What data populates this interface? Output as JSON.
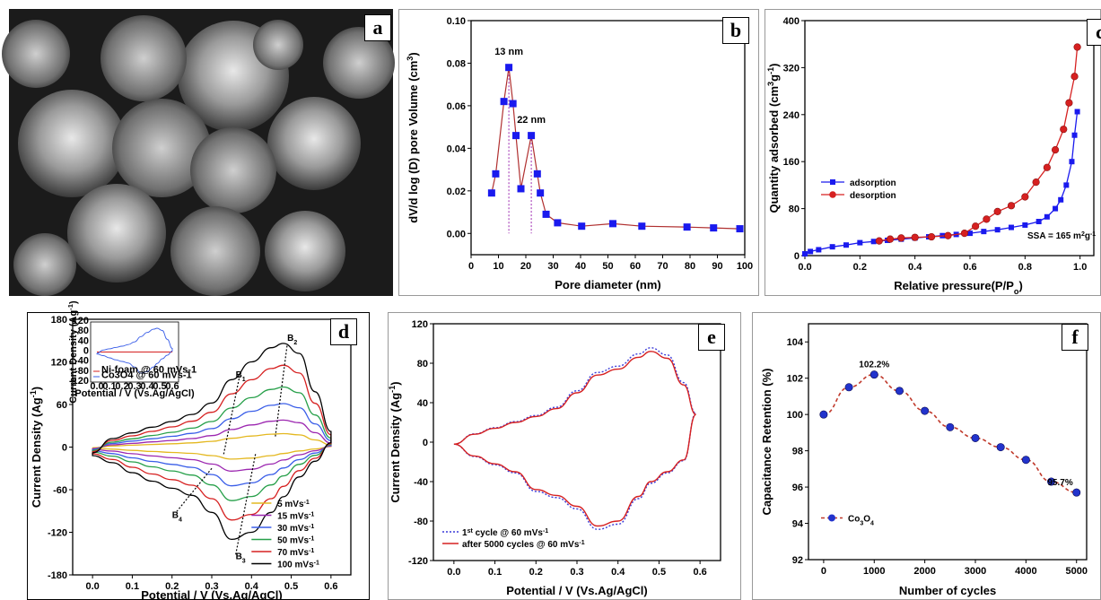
{
  "panel_labels": {
    "a": "a",
    "b": "b",
    "c": "c",
    "d": "d",
    "e": "e",
    "f": "f"
  },
  "chart_data": [
    {
      "id": "b",
      "type": "line",
      "xlabel": "Pore diameter (nm)",
      "ylabel": "dV/d log (D) pore Volume (cm3)",
      "xlim": [
        0,
        100
      ],
      "ylim": [
        -0.01,
        0.1
      ],
      "xticks": [
        0,
        10,
        20,
        30,
        40,
        50,
        60,
        70,
        80,
        90,
        100
      ],
      "yticks": [
        0.0,
        0.02,
        0.04,
        0.06,
        0.08,
        0.1
      ],
      "ytick_labels": [
        "0.00",
        "0.02",
        "0.04",
        "0.06",
        "0.08",
        "0.10"
      ],
      "x": [
        7.5,
        9,
        12,
        13.8,
        15.3,
        16.4,
        18.2,
        22,
        24.2,
        25.3,
        27.4,
        31.6,
        40.4,
        51.8,
        62.4,
        78.9,
        88.6,
        98.2
      ],
      "y": [
        0.019,
        0.028,
        0.062,
        0.078,
        0.061,
        0.046,
        0.021,
        0.046,
        0.028,
        0.019,
        0.009,
        0.005,
        0.0034,
        0.0046,
        0.0034,
        0.003,
        0.0026,
        0.0022
      ],
      "marker_color": "#1a1aee",
      "line_color": "#b03030",
      "annotations": [
        {
          "text": "13 nm",
          "x": 13.8
        },
        {
          "text": "22 nm",
          "x": 22
        }
      ]
    },
    {
      "id": "c",
      "type": "line",
      "xlabel": "Relative pressure(P/P",
      "xlabel_sub": "o",
      "xlabel_end": ")",
      "ylabel": "Quantity adsorbed (cm3g-1)",
      "xlim": [
        0,
        1.05
      ],
      "ylim": [
        0,
        400
      ],
      "xticks": [
        0.0,
        0.2,
        0.4,
        0.6,
        0.8,
        1.0
      ],
      "xtick_labels": [
        "0.0",
        "0.2",
        "0.4",
        "0.6",
        "0.8",
        "1.0"
      ],
      "yticks": [
        0,
        80,
        160,
        240,
        320,
        400
      ],
      "series": [
        {
          "name": "adsorption",
          "color": "#1a1aee",
          "marker": "square",
          "x": [
            0.0,
            0.02,
            0.05,
            0.1,
            0.15,
            0.2,
            0.25,
            0.3,
            0.35,
            0.4,
            0.45,
            0.5,
            0.55,
            0.6,
            0.65,
            0.7,
            0.75,
            0.8,
            0.85,
            0.88,
            0.91,
            0.93,
            0.95,
            0.97,
            0.98,
            0.99
          ],
          "y": [
            3,
            7,
            10,
            15,
            18,
            22,
            24,
            26,
            28,
            30,
            32,
            34,
            36,
            38,
            41,
            44,
            48,
            52,
            58,
            66,
            80,
            95,
            120,
            160,
            205,
            245
          ]
        },
        {
          "name": "desorption",
          "color": "#d62020",
          "marker": "circle",
          "x": [
            0.27,
            0.31,
            0.35,
            0.4,
            0.46,
            0.52,
            0.58,
            0.62,
            0.66,
            0.7,
            0.75,
            0.8,
            0.84,
            0.88,
            0.91,
            0.94,
            0.96,
            0.98,
            0.99
          ],
          "y": [
            25,
            28,
            30,
            31,
            32,
            34,
            38,
            50,
            62,
            75,
            85,
            100,
            125,
            150,
            180,
            215,
            260,
            305,
            355
          ]
        }
      ],
      "annotation": "SSA = 165 m2g-1",
      "annotation_color": "#2e9a2e"
    },
    {
      "id": "d",
      "type": "line",
      "xlabel": "Potential / V (Vs.Ag/AgCl)",
      "ylabel": "Current Density (Ag-1)",
      "xlim": [
        -0.05,
        0.65
      ],
      "ylim": [
        -180,
        180
      ],
      "xticks": [
        0.0,
        0.1,
        0.2,
        0.3,
        0.4,
        0.5,
        0.6
      ],
      "xtick_labels": [
        "0.0",
        "0.1",
        "0.2",
        "0.3",
        "0.4",
        "0.5",
        "0.6"
      ],
      "yticks": [
        -180,
        -120,
        -60,
        0,
        60,
        120,
        180
      ],
      "series": [
        {
          "name": "5 mVs-1",
          "color": "#e4b820",
          "scale": 0.13
        },
        {
          "name": "15 mVs-1",
          "color": "#9c27b0",
          "scale": 0.26
        },
        {
          "name": "30 mVs-1",
          "color": "#3a5ee8",
          "scale": 0.42
        },
        {
          "name": "50 mVs-1",
          "color": "#27a04a",
          "scale": 0.58
        },
        {
          "name": "70 mVs-1",
          "color": "#d62020",
          "scale": 0.79
        },
        {
          "name": "100 mVs-1",
          "color": "#000000",
          "scale": 1.0
        }
      ],
      "base_curve": {
        "x": [
          0.0,
          0.05,
          0.1,
          0.15,
          0.2,
          0.25,
          0.3,
          0.35,
          0.4,
          0.45,
          0.48,
          0.52,
          0.56,
          0.6
        ],
        "upper": [
          -8,
          12,
          20,
          28,
          36,
          46,
          62,
          95,
          120,
          140,
          146,
          132,
          78,
          22
        ],
        "lower": [
          -12,
          -22,
          -36,
          -48,
          -58,
          -68,
          -92,
          -130,
          -120,
          -92,
          -70,
          -42,
          -20,
          6
        ]
      },
      "peak_labels": [
        {
          "text": "B1",
          "x": 0.36,
          "y": 98
        },
        {
          "text": "B2",
          "x": 0.49,
          "y": 150
        },
        {
          "text": "B3",
          "x": 0.36,
          "y": -158
        },
        {
          "text": "B4",
          "x": 0.2,
          "y": -100
        }
      ],
      "inset": {
        "xlabel": "Potential / V (Vs.Ag/AgCl)",
        "ylabel": "Current Density (Ag-1)",
        "xticks": [
          0.0,
          0.1,
          0.2,
          0.3,
          0.4,
          0.5,
          0.6
        ],
        "xtick_labels": [
          "0.0",
          "0.1",
          "0.2",
          "0.3",
          "0.4",
          "0.5",
          "0.6"
        ],
        "yticks": [
          -120,
          -80,
          -40,
          0,
          40,
          80,
          120
        ],
        "series": [
          {
            "name": "Ni-foam @ 60 mVs-1",
            "color": "#d62020"
          },
          {
            "name": "Co3O4 @ 60 mVs-1",
            "color": "#3a5ee8"
          }
        ]
      }
    },
    {
      "id": "e",
      "type": "line",
      "xlabel": "Potential / V (Vs.Ag/AgCl)",
      "ylabel": "Current Density (Ag-1)",
      "xlim": [
        -0.05,
        0.65
      ],
      "ylim": [
        -120,
        120
      ],
      "xticks": [
        0.0,
        0.1,
        0.2,
        0.3,
        0.4,
        0.5,
        0.6
      ],
      "xtick_labels": [
        "0.0",
        "0.1",
        "0.2",
        "0.3",
        "0.4",
        "0.5",
        "0.6"
      ],
      "yticks": [
        -120,
        -80,
        -40,
        0,
        40,
        80,
        120
      ],
      "series": [
        {
          "name": "1st cycle @ 60 mVs-1",
          "color": "#3a3ad8",
          "dash": true,
          "scale": 1.04
        },
        {
          "name": "after 5000 cycles @ 60 mVs-1",
          "color": "#d62020",
          "dash": false,
          "scale": 1.0
        }
      ],
      "base_curve": {
        "x": [
          0.0,
          0.05,
          0.1,
          0.15,
          0.2,
          0.25,
          0.3,
          0.35,
          0.4,
          0.45,
          0.48,
          0.52,
          0.56,
          0.59
        ],
        "upper": [
          -2,
          8,
          14,
          20,
          26,
          34,
          50,
          68,
          74,
          86,
          92,
          85,
          58,
          28
        ],
        "lower": [
          -2,
          -14,
          -22,
          -30,
          -48,
          -54,
          -65,
          -85,
          -80,
          -55,
          -40,
          -30,
          -18,
          28
        ]
      }
    },
    {
      "id": "f",
      "type": "line",
      "xlabel": "Number of cycles",
      "ylabel": "Capacitance Retention (%)",
      "xlim": [
        -300,
        5200
      ],
      "ylim": [
        92,
        105
      ],
      "xticks": [
        0,
        1000,
        2000,
        3000,
        4000,
        5000
      ],
      "yticks": [
        92,
        94,
        96,
        98,
        100,
        102,
        104
      ],
      "x": [
        0,
        500,
        1000,
        1500,
        2000,
        2500,
        3000,
        3500,
        4000,
        4500,
        5000
      ],
      "y": [
        100,
        101.5,
        102.2,
        101.3,
        100.2,
        99.3,
        98.7,
        98.2,
        97.5,
        96.3,
        95.7
      ],
      "series": [
        {
          "name": "Co3O4",
          "color": "#2233cc",
          "line_color": "#c0392b"
        }
      ],
      "annotations": [
        {
          "text": "102.2%",
          "x": 1000,
          "y": 102.2
        },
        {
          "text": "95.7%",
          "x": 5000,
          "y": 95.7
        }
      ]
    }
  ]
}
